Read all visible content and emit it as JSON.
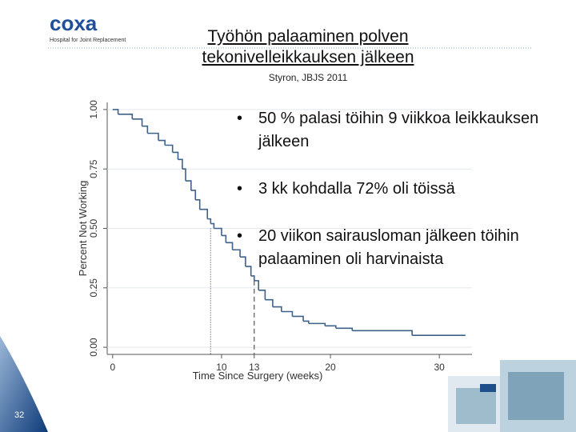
{
  "header": {
    "logo": "coxa",
    "logo_tagline": "Hospital for Joint Replacement",
    "title_lines": [
      "Työhön palaaminen polven",
      "tekonivelleikkauksen jälkeen"
    ],
    "subtitle": "Styron, JBJS 2011"
  },
  "bullets": [
    "50 % palasi töihin 9 viikkoa leikkauksen jälkeen",
    "3 kk kohdalla 72% oli töissä",
    "20 viikon sairausloman jälkeen töihin palaaminen oli harvinaista"
  ],
  "slide_number": "32",
  "chart_data": {
    "type": "line",
    "step": true,
    "x_label": "Time Since Surgery (weeks)",
    "y_label": "Percent Not Working",
    "x": [
      0,
      0.5,
      1.8,
      2.7,
      3.2,
      4.2,
      4.8,
      5.5,
      6,
      6.4,
      6.7,
      7.2,
      7.6,
      8,
      8.7,
      9,
      9.3,
      10,
      10.4,
      11,
      11.7,
      12.2,
      12.7,
      13,
      13.4,
      14,
      14.7,
      15.5,
      16.5,
      17.5,
      18,
      19.5,
      20.5,
      22,
      27.5,
      32.4
    ],
    "values": [
      1,
      0.98,
      0.96,
      0.93,
      0.9,
      0.87,
      0.85,
      0.82,
      0.79,
      0.75,
      0.7,
      0.66,
      0.62,
      0.58,
      0.54,
      0.52,
      0.5,
      0.47,
      0.44,
      0.41,
      0.38,
      0.34,
      0.3,
      0.28,
      0.24,
      0.2,
      0.17,
      0.15,
      0.13,
      0.11,
      0.1,
      0.09,
      0.08,
      0.07,
      0.05,
      0.05
    ],
    "color": "#3e6189",
    "xlim": [
      -0.5,
      33
    ],
    "ylim": [
      -0.03,
      1.03
    ],
    "xticks": [
      0,
      10,
      13,
      20,
      30
    ],
    "yticks": [
      {
        "value": 0,
        "label": "0.00"
      },
      {
        "value": 0.25,
        "label": "0.25"
      },
      {
        "value": 0.5,
        "label": "0.50"
      },
      {
        "value": 0.75,
        "label": "0.75"
      },
      {
        "value": 1,
        "label": "1.00"
      }
    ],
    "grid": true,
    "reference_lines": [
      {
        "x": 9,
        "y": 0.5,
        "style": "dotted"
      },
      {
        "x": 13,
        "y": 0.28,
        "style": "dashed"
      }
    ]
  }
}
